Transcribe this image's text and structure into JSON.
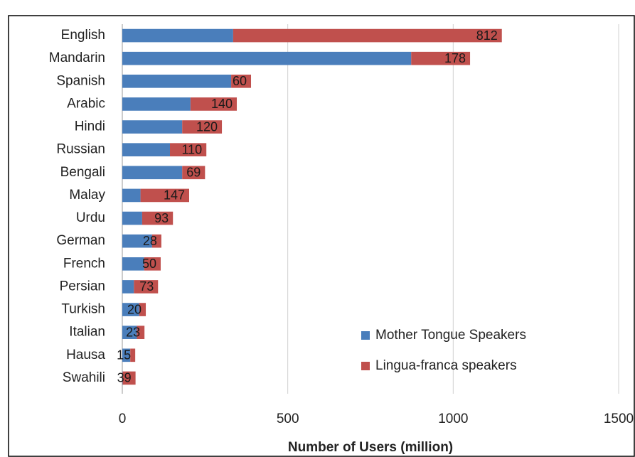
{
  "chart_data": {
    "type": "stacked-barh",
    "x_label": "Number of Users (million)",
    "categories": [
      "English",
      "Mandarin",
      "Spanish",
      "Arabic",
      "Hindi",
      "Russian",
      "Bengali",
      "Malay",
      "Urdu",
      "German",
      "French",
      "Persian",
      "Turkish",
      "Italian",
      "Hausa",
      "Swahili"
    ],
    "series": [
      {
        "name": "Mother Tongue Speakers",
        "color": "#4a7ebb",
        "values": [
          335,
          873,
          329,
          206,
          181,
          144,
          181,
          55,
          60,
          90,
          66,
          35,
          51,
          44,
          24,
          1
        ]
      },
      {
        "name": "Lingua-franca speakers",
        "color": "#c0504d",
        "values": [
          812,
          178,
          60,
          140,
          120,
          110,
          69,
          147,
          93,
          28,
          50,
          73,
          20,
          23,
          15,
          39
        ]
      }
    ],
    "xlim": [
      0,
      1500
    ],
    "xticks": [
      0,
      500,
      1000,
      1500
    ],
    "grid": true,
    "legend": "lower right"
  }
}
